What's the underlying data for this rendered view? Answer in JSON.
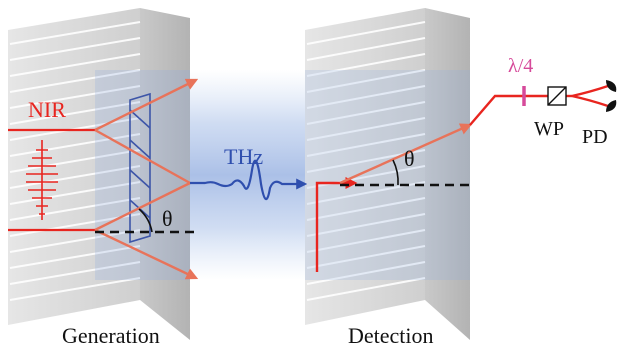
{
  "labels": {
    "nir": "NIR",
    "thz": "THz",
    "theta_generation": "θ",
    "theta_detection": "θ",
    "lambda_quarter": "λ/4",
    "wp": "WP",
    "pd": "PD",
    "generation": "Generation",
    "detection": "Detection"
  },
  "colors": {
    "nir_beam": "#e8251f",
    "generated_beam": "#e8735a",
    "thz_wave": "#2f4fae",
    "thz_glow": "#9fb6e0",
    "wave_plate": "#d64a9a",
    "nir_label": "#e8251f",
    "thz_label": "#2f4fae",
    "lambda_label": "#d64a9a",
    "grating_face": "#d9d9d9",
    "grating_side": "#bfbfbf"
  }
}
